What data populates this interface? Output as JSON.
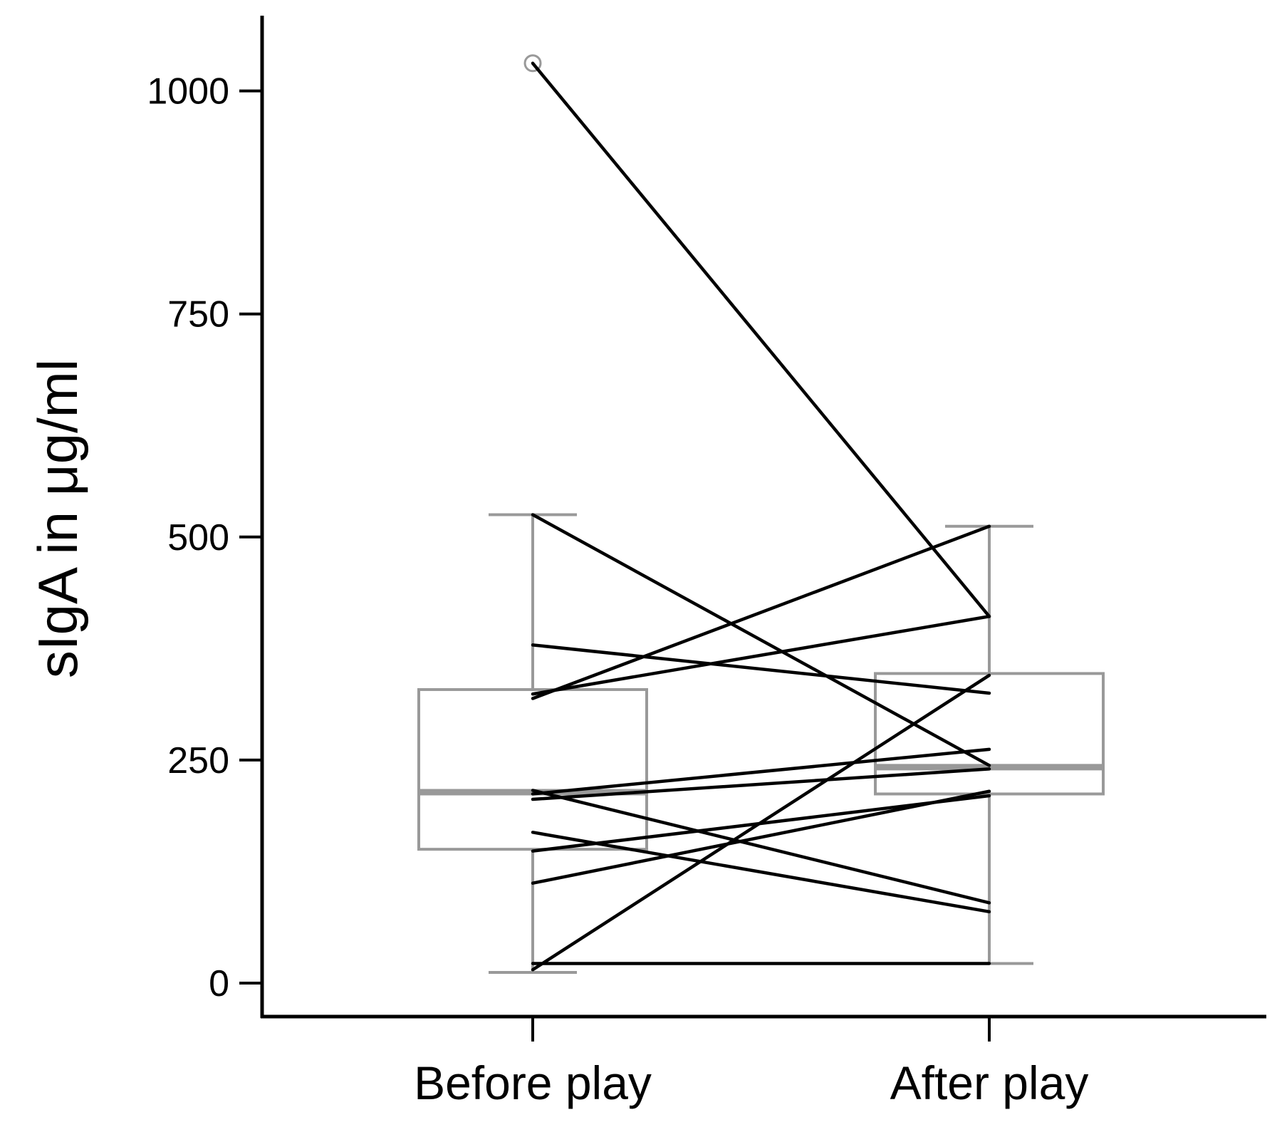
{
  "chart_data": {
    "type": "box",
    "title": "",
    "xlabel": "",
    "ylabel": "sIgA in μg/ml",
    "categories": [
      "Before play",
      "After play"
    ],
    "yticks": [
      0,
      250,
      500,
      750,
      1000
    ],
    "ylim": [
      -35,
      1085
    ],
    "grid": false,
    "legend": "none",
    "colors": {
      "box": "#999999",
      "line": "#000000",
      "outlier": "#999999"
    },
    "boxes": [
      {
        "category": "Before play",
        "whisker_low": 12,
        "q1": 150,
        "median": 214,
        "q3": 329,
        "whisker_high": 525,
        "outliers": [
          1031
        ]
      },
      {
        "category": "After play",
        "whisker_low": 22,
        "q1": 212,
        "median": 242,
        "q3": 347,
        "whisker_high": 512,
        "outliers": []
      }
    ],
    "paired_lines": [
      {
        "before": 1031,
        "after": 411
      },
      {
        "before": 525,
        "after": 244
      },
      {
        "before": 379,
        "after": 325
      },
      {
        "before": 319,
        "after": 512
      },
      {
        "before": 324,
        "after": 411
      },
      {
        "before": 212,
        "after": 262
      },
      {
        "before": 206,
        "after": 240
      },
      {
        "before": 216,
        "after": 90
      },
      {
        "before": 169,
        "after": 80
      },
      {
        "before": 148,
        "after": 210
      },
      {
        "before": 112,
        "after": 215
      },
      {
        "before": 15,
        "after": 345
      },
      {
        "before": 22,
        "after": 22
      }
    ]
  }
}
